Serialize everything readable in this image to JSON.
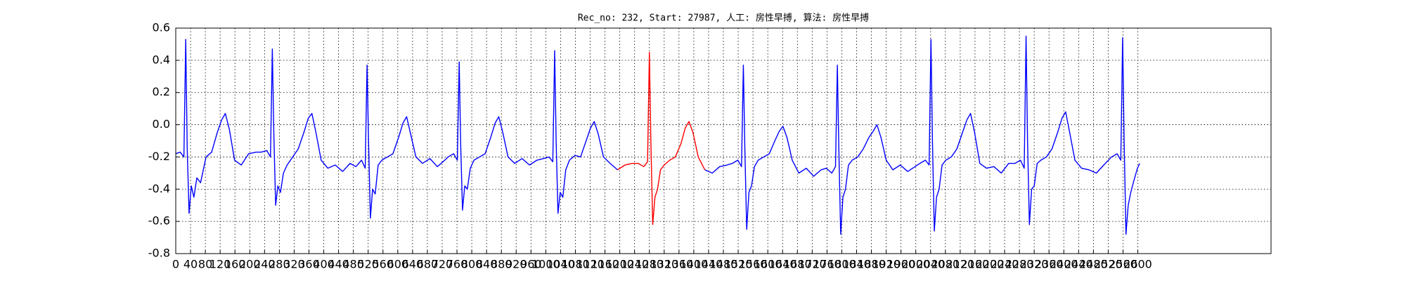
{
  "chart_data": {
    "type": "line",
    "title": "Rec_no: 232, Start: 27987, 人工: 房性早搏, 算法: 房性早搏",
    "xlim": [
      0,
      2960
    ],
    "ylim": [
      -0.8,
      0.6
    ],
    "xticks": [
      0,
      40,
      80,
      120,
      160,
      200,
      240,
      280,
      320,
      360,
      400,
      440,
      480,
      520,
      560,
      600,
      640,
      680,
      720,
      760,
      800,
      840,
      880,
      920,
      960,
      1000,
      1040,
      1080,
      1120,
      1160,
      1200,
      1240,
      1280,
      1320,
      1360,
      1400,
      1440,
      1480,
      1520,
      1560,
      1600,
      1640,
      1680,
      1720,
      1760,
      1800,
      1840,
      1880,
      1920,
      1960,
      2000,
      2040,
      2080,
      2120,
      2160,
      2200,
      2240,
      2280,
      2320,
      2360,
      2400,
      2440,
      2480,
      2520,
      2560,
      2600
    ],
    "yticks": [
      -0.8,
      -0.6,
      -0.4,
      -0.2,
      {
        "value": 0,
        "label": "0.0"
      },
      0.2,
      0.4,
      0.6
    ],
    "grid": true,
    "series": [
      {
        "color": "#0000ff",
        "x": [
          0,
          12,
          22,
          27,
          31,
          36,
          42,
          49,
          57,
          67,
          82,
          97,
          112,
          124,
          134,
          145,
          159,
          177,
          197,
          217,
          231,
          246,
          256,
          261,
          265,
          270,
          276,
          283,
          291,
          301,
          316,
          331,
          346,
          358,
          368,
          379,
          393,
          411,
          431,
          451,
          471,
          487,
          502,
          512,
          517,
          521,
          526,
          532,
          539,
          547,
          557,
          572,
          587,
          602,
          614,
          624,
          635,
          649,
          667,
          687,
          707,
          727,
          736,
          751,
          761,
          766,
          770,
          775,
          781,
          788,
          796,
          806,
          821,
          836,
          851,
          863,
          873,
          884,
          898,
          916,
          936,
          956,
          976,
          994,
          1009,
          1019,
          1024,
          1028,
          1033,
          1039,
          1046,
          1054,
          1064,
          1079,
          1094,
          1109,
          1121,
          1131,
          1142,
          1156,
          1174,
          1194,
          1214,
          1234,
          1250,
          1265,
          1275,
          1280,
          1284,
          1289,
          1295,
          1302,
          1310,
          1320,
          1335,
          1350,
          1365,
          1377,
          1387,
          1398,
          1412,
          1430,
          1450,
          1470,
          1490,
          1504,
          1519,
          1529,
          1534,
          1538,
          1543,
          1549,
          1556,
          1564,
          1574,
          1589,
          1604,
          1619,
          1631,
          1641,
          1652,
          1666,
          1684,
          1704,
          1724,
          1744,
          1758,
          1773,
          1783,
          1788,
          1792,
          1797,
          1803,
          1810,
          1818,
          1828,
          1843,
          1858,
          1873,
          1885,
          1895,
          1906,
          1920,
          1938,
          1958,
          1978,
          1998,
          2011,
          2026,
          2036,
          2041,
          2045,
          2050,
          2056,
          2063,
          2071,
          2081,
          2096,
          2111,
          2126,
          2138,
          2148,
          2159,
          2173,
          2191,
          2211,
          2231,
          2251,
          2268,
          2283,
          2293,
          2298,
          2302,
          2307,
          2313,
          2320,
          2328,
          2338,
          2353,
          2368,
          2383,
          2395,
          2405,
          2416,
          2430,
          2448,
          2468,
          2488,
          2508,
          2529,
          2544,
          2554,
          2559,
          2563,
          2568,
          2574,
          2581,
          2589,
          2599,
          2605
        ],
        "values": [
          -0.18,
          -0.17,
          -0.2,
          0.53,
          -0.15,
          -0.55,
          -0.38,
          -0.45,
          -0.33,
          -0.36,
          -0.2,
          -0.17,
          -0.05,
          0.03,
          0.07,
          -0.03,
          -0.22,
          -0.25,
          -0.18,
          -0.17,
          -0.17,
          -0.16,
          -0.2,
          0.47,
          -0.05,
          -0.5,
          -0.38,
          -0.42,
          -0.3,
          -0.25,
          -0.2,
          -0.15,
          -0.05,
          0.04,
          0.07,
          -0.05,
          -0.22,
          -0.27,
          -0.25,
          -0.29,
          -0.24,
          -0.26,
          -0.22,
          -0.27,
          0.37,
          -0.1,
          -0.58,
          -0.4,
          -0.43,
          -0.25,
          -0.22,
          -0.2,
          -0.18,
          -0.08,
          0.01,
          0.05,
          -0.06,
          -0.2,
          -0.24,
          -0.21,
          -0.26,
          -0.22,
          -0.2,
          -0.18,
          -0.22,
          0.39,
          -0.12,
          -0.53,
          -0.38,
          -0.4,
          -0.27,
          -0.22,
          -0.2,
          -0.18,
          -0.08,
          0.01,
          0.05,
          -0.05,
          -0.2,
          -0.24,
          -0.21,
          -0.25,
          -0.22,
          -0.21,
          -0.2,
          -0.23,
          0.46,
          -0.1,
          -0.55,
          -0.42,
          -0.45,
          -0.28,
          -0.22,
          -0.19,
          -0.2,
          -0.1,
          -0.02,
          0.02,
          -0.06,
          -0.2,
          -0.24,
          -0.28,
          null,
          null,
          null,
          null,
          null,
          null,
          null,
          null,
          null,
          null,
          null,
          null,
          null,
          null,
          null,
          null,
          null,
          null,
          null,
          -0.28,
          -0.3,
          -0.26,
          -0.25,
          -0.24,
          -0.22,
          -0.26,
          0.37,
          -0.15,
          -0.65,
          -0.42,
          -0.38,
          -0.26,
          -0.22,
          -0.2,
          -0.18,
          -0.1,
          -0.04,
          -0.01,
          -0.08,
          -0.22,
          -0.3,
          -0.27,
          -0.32,
          -0.28,
          -0.27,
          -0.3,
          -0.26,
          0.37,
          -0.15,
          -0.68,
          -0.45,
          -0.4,
          -0.25,
          -0.22,
          -0.2,
          -0.15,
          -0.08,
          -0.04,
          0.0,
          -0.08,
          -0.22,
          -0.28,
          -0.25,
          -0.29,
          -0.26,
          -0.24,
          -0.22,
          -0.25,
          0.53,
          -0.1,
          -0.66,
          -0.45,
          -0.4,
          -0.25,
          -0.22,
          -0.2,
          -0.15,
          -0.05,
          0.03,
          0.07,
          -0.05,
          -0.24,
          -0.27,
          -0.26,
          -0.3,
          -0.24,
          -0.24,
          -0.22,
          -0.27,
          0.55,
          -0.1,
          -0.62,
          -0.4,
          -0.38,
          -0.24,
          -0.22,
          -0.2,
          -0.15,
          -0.05,
          0.04,
          0.08,
          -0.05,
          -0.22,
          -0.27,
          -0.28,
          -0.3,
          -0.25,
          -0.2,
          -0.18,
          -0.22,
          0.54,
          -0.1,
          -0.68,
          -0.5,
          -0.42,
          -0.35,
          -0.27,
          -0.24
        ]
      },
      {
        "color": "#ff0000",
        "x": [
          1194,
          1214,
          1234,
          1250,
          1265,
          1275,
          1280,
          1284,
          1289,
          1295,
          1302,
          1310,
          1320,
          1335,
          1350,
          1365,
          1377,
          1387,
          1398,
          1412,
          1430
        ],
        "values": [
          -0.28,
          -0.25,
          -0.24,
          -0.24,
          -0.26,
          -0.23,
          0.45,
          -0.1,
          -0.62,
          -0.45,
          -0.4,
          -0.28,
          -0.25,
          -0.22,
          -0.2,
          -0.12,
          -0.02,
          0.02,
          -0.05,
          -0.2,
          -0.28
        ]
      }
    ]
  }
}
